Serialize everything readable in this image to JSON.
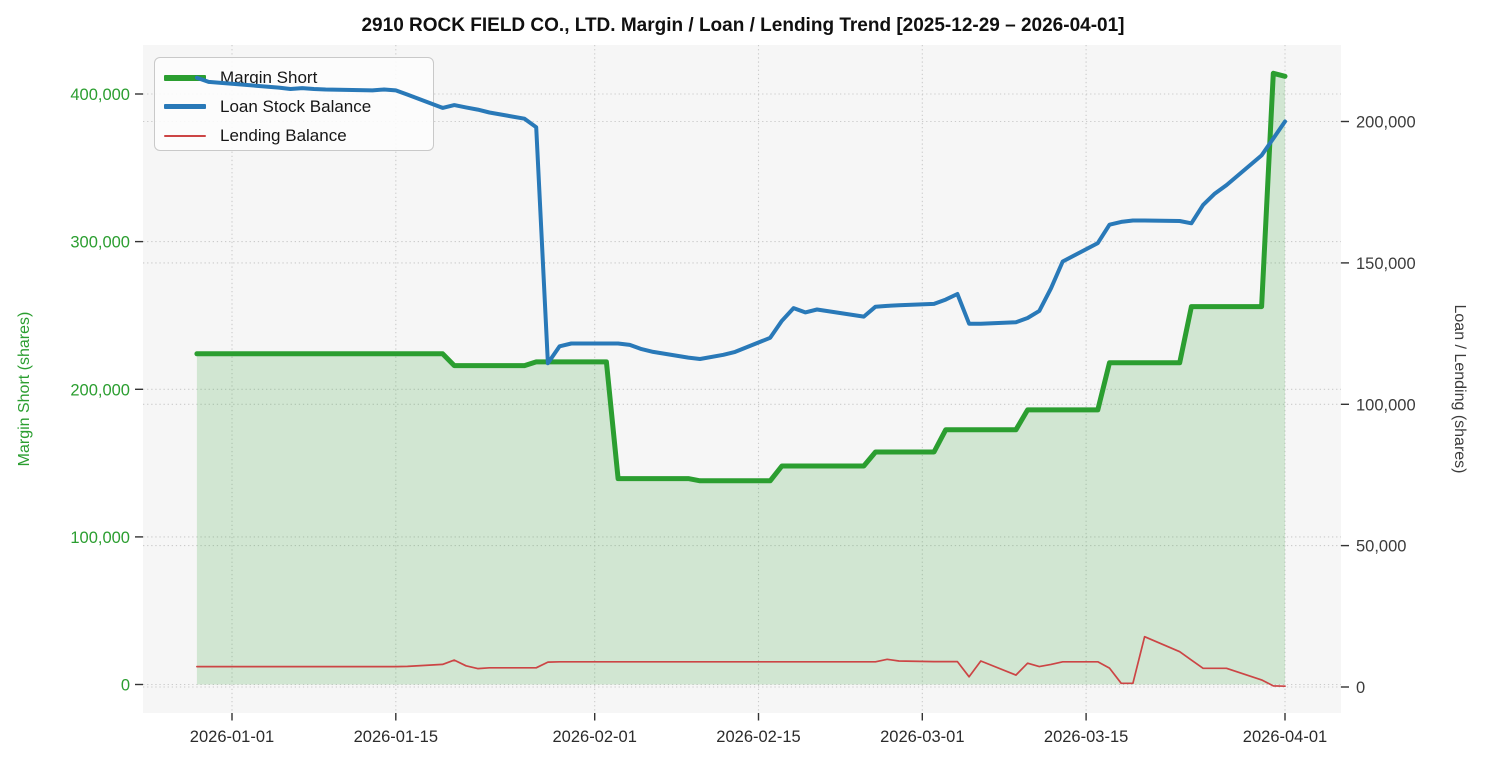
{
  "title": "2910 ROCK FIELD CO., LTD. Margin / Loan / Lending Trend [2025-12-29 – 2026-04-01]",
  "chart_data": {
    "type": "line",
    "title": "2910 ROCK FIELD CO., LTD. Margin / Loan / Lending Trend [2025-12-29 – 2026-04-01]",
    "xlabel": "",
    "legend_position": "upper left",
    "grid": true,
    "plot_background": "#f6f6f6",
    "x_axis": {
      "tick_dates": [
        "2026-01-01",
        "2026-01-15",
        "2026-02-01",
        "2026-02-15",
        "2026-03-01",
        "2026-03-15",
        "2026-04-01"
      ],
      "tick_color": "#2b2b2b"
    },
    "left_axis": {
      "label": "Margin Short (shares)",
      "color": "#2b9e30",
      "ticks": [
        0,
        100000,
        200000,
        300000,
        400000
      ],
      "range": [
        -19300,
        433200
      ]
    },
    "right_axis": {
      "label": "Loan / Lending (shares)",
      "color": "#3c3c3c",
      "ticks": [
        0,
        50000,
        100000,
        150000,
        200000
      ],
      "range": [
        -9200,
        227050
      ]
    },
    "dates": [
      "2025-12-29",
      "2025-12-30",
      "2026-01-05",
      "2026-01-06",
      "2026-01-07",
      "2026-01-08",
      "2026-01-09",
      "2026-01-13",
      "2026-01-14",
      "2026-01-15",
      "2026-01-16",
      "2026-01-19",
      "2026-01-20",
      "2026-01-21",
      "2026-01-22",
      "2026-01-23",
      "2026-01-26",
      "2026-01-27",
      "2026-01-28",
      "2026-01-29",
      "2026-01-30",
      "2026-02-02",
      "2026-02-03",
      "2026-02-04",
      "2026-02-05",
      "2026-02-06",
      "2026-02-09",
      "2026-02-10",
      "2026-02-12",
      "2026-02-13",
      "2026-02-16",
      "2026-02-17",
      "2026-02-18",
      "2026-02-19",
      "2026-02-20",
      "2026-02-24",
      "2026-02-25",
      "2026-02-26",
      "2026-02-27",
      "2026-03-02",
      "2026-03-03",
      "2026-03-04",
      "2026-03-05",
      "2026-03-06",
      "2026-03-09",
      "2026-03-10",
      "2026-03-11",
      "2026-03-12",
      "2026-03-13",
      "2026-03-16",
      "2026-03-17",
      "2026-03-18",
      "2026-03-19",
      "2026-03-20",
      "2026-03-23",
      "2026-03-24",
      "2026-03-25",
      "2026-03-26",
      "2026-03-27",
      "2026-03-30",
      "2026-03-31",
      "2026-04-01"
    ],
    "series": [
      {
        "name": "Margin Short",
        "axis": "left",
        "color": "#2b9e30",
        "fill": "rgba(44,158,48,0.18)",
        "width": 5,
        "values": [
          224000,
          224000,
          224000,
          224000,
          224000,
          224000,
          224000,
          224000,
          224000,
          224000,
          224000,
          224000,
          216000,
          216000,
          216000,
          216000,
          216000,
          218500,
          218500,
          218500,
          218500,
          218500,
          139500,
          139500,
          139500,
          139500,
          139500,
          138000,
          138000,
          138000,
          138000,
          148000,
          148000,
          148000,
          148000,
          148000,
          157500,
          157500,
          157500,
          157500,
          172500,
          172500,
          172500,
          172500,
          172500,
          186000,
          186000,
          186000,
          186000,
          186000,
          218000,
          218000,
          218000,
          218000,
          218000,
          256000,
          256000,
          256000,
          256000,
          256000,
          414000,
          412000
        ]
      },
      {
        "name": "Loan Stock Balance",
        "axis": "right",
        "color": "#2979b8",
        "width": 4,
        "values": [
          215500,
          214000,
          212000,
          211500,
          211800,
          211500,
          211300,
          211000,
          211300,
          211000,
          209500,
          204800,
          205800,
          205000,
          204200,
          203200,
          201000,
          198000,
          114500,
          120500,
          121500,
          121500,
          121500,
          121000,
          119500,
          118500,
          116500,
          116000,
          117500,
          118500,
          123500,
          129500,
          134000,
          132500,
          133500,
          131000,
          134500,
          134800,
          135000,
          135500,
          137000,
          139000,
          128500,
          128500,
          129000,
          130500,
          133000,
          141000,
          150500,
          157000,
          163500,
          164500,
          165000,
          165000,
          164800,
          164000,
          170500,
          174500,
          177500,
          188000,
          194000,
          200000
        ]
      },
      {
        "name": "Lending Balance",
        "axis": "right",
        "color": "#cc4545",
        "width": 1.7,
        "values": [
          7200,
          7200,
          7200,
          7200,
          7200,
          7200,
          7200,
          7200,
          7200,
          7200,
          7300,
          8000,
          9500,
          7500,
          6500,
          6800,
          6800,
          6800,
          8800,
          8900,
          8900,
          8900,
          8900,
          8900,
          8900,
          8900,
          8900,
          8900,
          8900,
          8900,
          8900,
          8900,
          8900,
          8900,
          8900,
          8900,
          8900,
          9800,
          9200,
          9000,
          9000,
          9000,
          3600,
          9200,
          4200,
          8400,
          7200,
          8000,
          8900,
          8900,
          6700,
          1300,
          1300,
          17800,
          12500,
          9500,
          6600,
          6600,
          6600,
          2500,
          400,
          300
        ]
      }
    ]
  }
}
